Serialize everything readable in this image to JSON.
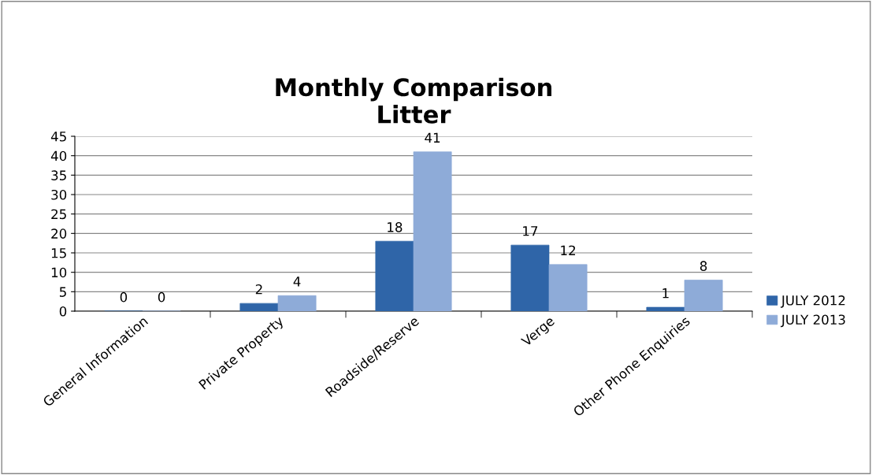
{
  "chart_data": {
    "type": "bar",
    "title": "Monthly Comparison\nLitter",
    "categories": [
      "General Information",
      "Private Property",
      "Roadside/Reserve",
      "Verge",
      "Other Phone Enquiries"
    ],
    "series": [
      {
        "name": "JULY 2012",
        "color": "#2f65a8",
        "values": [
          0,
          2,
          18,
          17,
          1
        ]
      },
      {
        "name": "JULY 2013",
        "color": "#8eabd8",
        "values": [
          0,
          4,
          41,
          12,
          8
        ]
      }
    ],
    "ylim": [
      0,
      45
    ],
    "yticks": [
      0,
      5,
      10,
      15,
      20,
      25,
      30,
      35,
      40,
      45
    ],
    "grid": "y",
    "legend": "right",
    "data_labels": true
  }
}
